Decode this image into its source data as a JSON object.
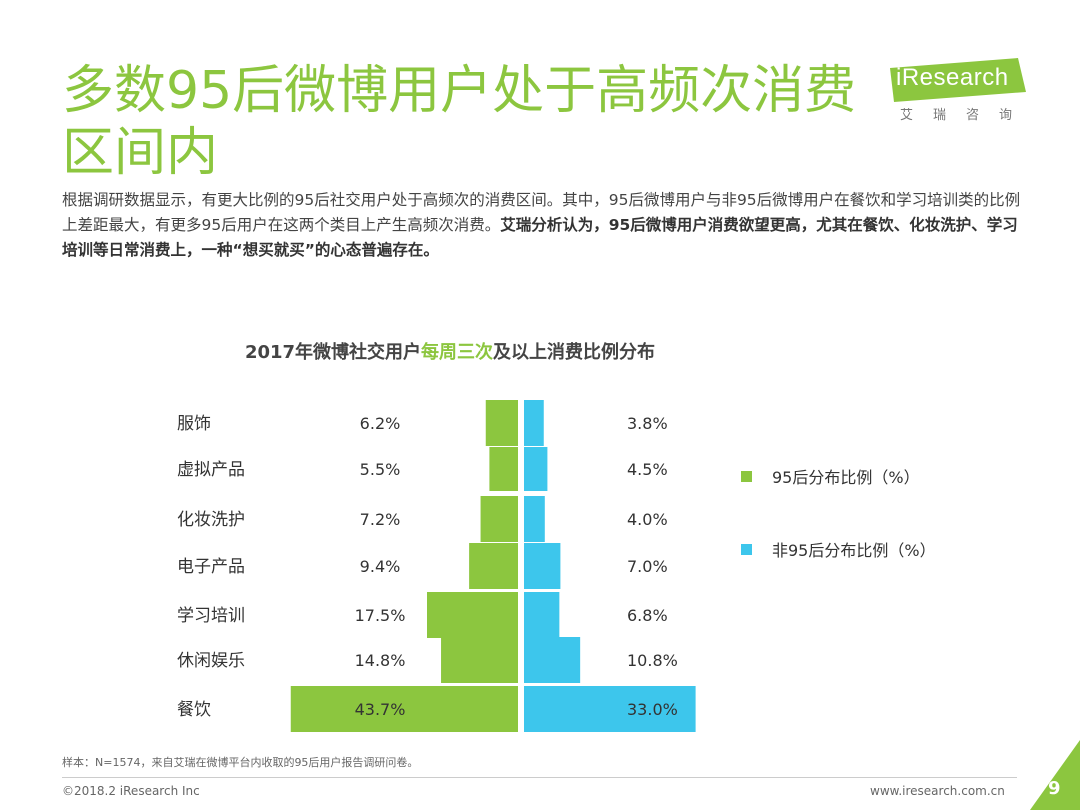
{
  "slide": {
    "title": "多数95后微博用户处于高频次消费区间内",
    "description_plain": "根据调研数据显示，有更大比例的95后社交用户处于高频次的消费区间。其中，95后微博用户与非95后微博用户在餐饮和学习培训类的比例上差距最大，有更多95后用户在这两个类目上产生高频次消费。",
    "description_bold": "艾瑞分析认为，95后微博用户消费欲望更高，尤其在餐饮、化妆洗护、学习培训等日常消费上，一种“想买就买”的心态普遍存在。",
    "footnote": "样本：N=1574，来自艾瑞在微博平台内收取的95后用户报告调研问卷。",
    "copyright": "©2018.2 iResearch Inc",
    "website": "www.iresearch.com.cn",
    "page_number": "9"
  },
  "logo": {
    "wordmark": "iResearch",
    "subtitle": "艾瑞咨询",
    "color": "#8cc63f"
  },
  "colors": {
    "green": "#8cc63f",
    "blue": "#3dc6ec",
    "corner": "#8cc63f"
  },
  "chart_data": {
    "type": "bar",
    "layout": "back-to-back horizontal",
    "title_parts": [
      "2017年微博社交用户",
      "每周三次",
      "及以上消费比例分布"
    ],
    "categories": [
      "服饰",
      "虚拟产品",
      "化妆洗护",
      "电子产品",
      "学习培训",
      "休闲娱乐",
      "餐饮"
    ],
    "series": [
      {
        "name": "95后分布比例（%）",
        "values": [
          6.2,
          5.5,
          7.2,
          9.4,
          17.5,
          14.8,
          43.7
        ],
        "labels": [
          "6.2%",
          "5.5%",
          "7.2%",
          "9.4%",
          "17.5%",
          "14.8%",
          "43.7%"
        ]
      },
      {
        "name": "非95后分布比例（%）",
        "values": [
          3.8,
          4.5,
          4.0,
          7.0,
          6.8,
          10.8,
          33.0
        ],
        "labels": [
          "3.8%",
          "4.5%",
          "4.0%",
          "7.0%",
          "6.8%",
          "10.8%",
          "33.0%"
        ]
      }
    ],
    "xlim": [
      0,
      45
    ],
    "legend": "right"
  }
}
